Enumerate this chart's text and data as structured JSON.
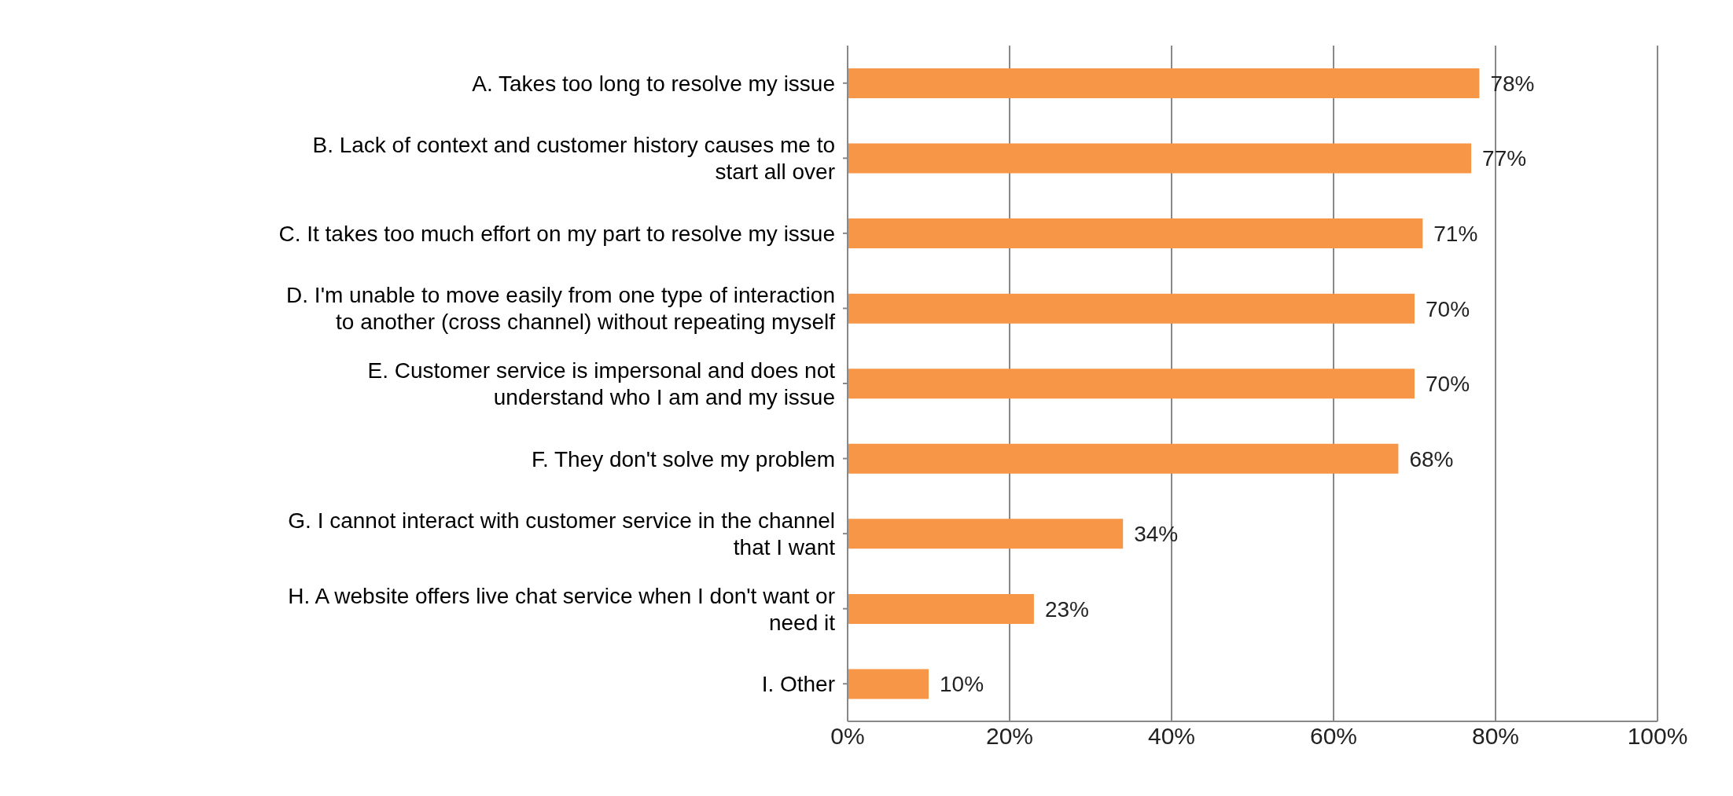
{
  "chart_data": {
    "type": "bar",
    "orientation": "horizontal",
    "categories": [
      "A. Takes too long to resolve my issue",
      "B. Lack of context and customer history causes me to\nstart all over",
      "C. It takes too much effort on my part to resolve my issue",
      "D. I'm unable to move easily from one type of interaction\nto another (cross channel) without repeating myself",
      "E. Customer service is impersonal and does not\nunderstand who I am and my issue",
      "F. They don't solve my problem",
      "G. I cannot interact with customer service in the channel\nthat I want",
      "H. A website offers live chat service when I don't want or\nneed it",
      "I. Other"
    ],
    "values": [
      78,
      77,
      71,
      70,
      70,
      68,
      34,
      23,
      10
    ],
    "value_labels": [
      "78%",
      "77%",
      "71%",
      "70%",
      "70%",
      "68%",
      "34%",
      "23%",
      "10%"
    ],
    "color": "#f79646",
    "xlim": [
      0,
      100
    ],
    "xticks": [
      {
        "value": 0,
        "label": "0%"
      },
      {
        "value": 20,
        "label": "20%"
      },
      {
        "value": 40,
        "label": "40%"
      },
      {
        "value": 60,
        "label": "60%"
      },
      {
        "value": 80,
        "label": "80%"
      },
      {
        "value": 100,
        "label": "100%"
      }
    ],
    "grid": "x"
  }
}
